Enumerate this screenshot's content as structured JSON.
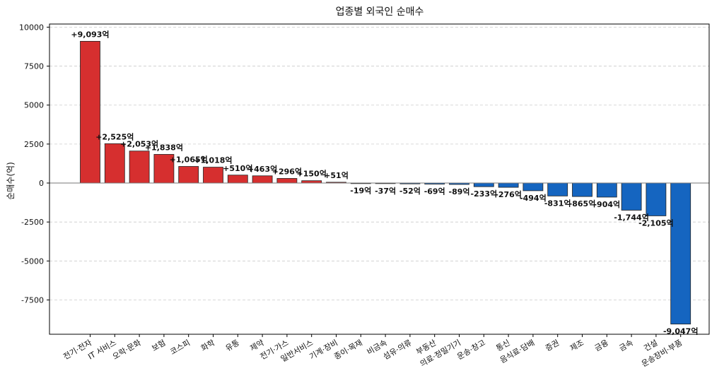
{
  "chart_data": {
    "type": "bar",
    "title": "업종별 외국인 순매수",
    "xlabel": "",
    "ylabel": "순매수(억)",
    "ylim": [
      -9700,
      10200
    ],
    "yticks": [
      10000,
      7500,
      5000,
      2500,
      0,
      -2500,
      -5000,
      -7500
    ],
    "ytick_labels": [
      "10000",
      "7500",
      "5000",
      "2500",
      "0",
      "-2500",
      "-5000",
      "-7500"
    ],
    "grid": true,
    "positive_color": "#d62f2f",
    "negative_color": "#1565c0",
    "categories": [
      "전기·전자",
      "IT 서비스",
      "오락·문화",
      "보험",
      "코스피",
      "화학",
      "유통",
      "제약",
      "전기·가스",
      "일반서비스",
      "기계·장비",
      "종이·목재",
      "비금속",
      "섬유·의류",
      "부동산",
      "의료·정밀기기",
      "운송·창고",
      "통신",
      "음식료·담배",
      "증권",
      "제조",
      "금융",
      "금속",
      "건설",
      "운송장비·부품"
    ],
    "values": [
      9093,
      2525,
      2053,
      1838,
      1065,
      1018,
      510,
      463,
      296,
      150,
      51,
      -19,
      -37,
      -52,
      -69,
      -89,
      -233,
      -276,
      -494,
      -831,
      -865,
      -904,
      -1744,
      -2105,
      -9047
    ],
    "data_labels": [
      "+9,093억",
      "+2,525억",
      "+2,053억",
      "+1,838억",
      "+1,065억",
      "+1,018억",
      "+510억",
      "+463억",
      "+296억",
      "+150억",
      "+51억",
      "-19억",
      "-37억",
      "-52억",
      "-69억",
      "-89억",
      "-233억",
      "-276억",
      "-494억",
      "-831억",
      "-865억",
      "-904억",
      "-1,744억",
      "-2,105억",
      "-9,047억"
    ]
  }
}
